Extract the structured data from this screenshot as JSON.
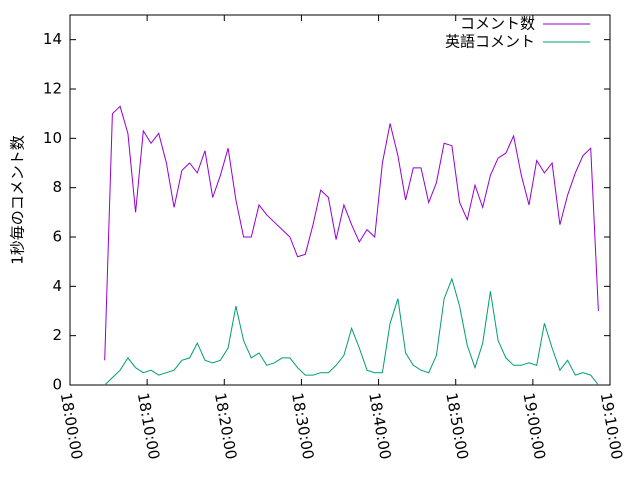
{
  "chart_data": {
    "type": "line",
    "y_label": "1秒毎のコメント数",
    "x": [
      "18:04:30",
      "18:05:30",
      "18:06:30",
      "18:07:30",
      "18:08:30",
      "18:09:30",
      "18:10:30",
      "18:11:30",
      "18:12:30",
      "18:13:30",
      "18:14:30",
      "18:15:30",
      "18:16:30",
      "18:17:30",
      "18:18:30",
      "18:19:30",
      "18:20:30",
      "18:21:30",
      "18:22:30",
      "18:23:30",
      "18:24:30",
      "18:25:30",
      "18:26:30",
      "18:27:30",
      "18:28:30",
      "18:29:30",
      "18:30:30",
      "18:31:30",
      "18:32:30",
      "18:33:30",
      "18:34:30",
      "18:35:30",
      "18:36:30",
      "18:37:30",
      "18:38:30",
      "18:39:30",
      "18:40:30",
      "18:41:30",
      "18:42:30",
      "18:43:30",
      "18:44:30",
      "18:45:30",
      "18:46:30",
      "18:47:30",
      "18:48:30",
      "18:49:30",
      "18:50:30",
      "18:51:30",
      "18:52:30",
      "18:53:30",
      "18:54:30",
      "18:55:30",
      "18:56:30",
      "18:57:30",
      "18:58:30",
      "18:59:30",
      "19:00:30",
      "19:01:30",
      "19:02:30",
      "19:03:30",
      "19:04:30",
      "19:05:30",
      "19:06:30",
      "19:07:30",
      "19:08:30"
    ],
    "series": [
      {
        "name": "コメント数",
        "color": "#9400d3",
        "values": [
          1.0,
          11,
          11.3,
          10.2,
          7,
          10.3,
          9.8,
          10.2,
          9.0,
          7.2,
          8.7,
          9.0,
          8.6,
          9.5,
          7.6,
          8.5,
          9.6,
          7.5,
          6.0,
          6.0,
          7.3,
          6.9,
          6.6,
          6.3,
          6.0,
          5.2,
          5.3,
          6.5,
          7.9,
          7.6,
          5.9,
          7.3,
          6.5,
          5.8,
          6.3,
          6.0,
          9.0,
          10.6,
          9.3,
          7.5,
          8.8,
          8.8,
          7.4,
          8.2,
          9.8,
          9.7,
          7.4,
          6.7,
          8.1,
          7.2,
          8.5,
          9.2,
          9.4,
          10.1,
          8.5,
          7.3,
          9.1,
          8.6,
          9.0,
          6.5,
          7.7,
          8.6,
          9.3,
          9.6,
          3.0
        ]
      },
      {
        "name": "英語コメント",
        "color": "#009e73",
        "values": [
          0,
          0.3,
          0.6,
          1.1,
          0.7,
          0.5,
          0.6,
          0.4,
          0.5,
          0.6,
          1.0,
          1.1,
          1.7,
          1.0,
          0.9,
          1.0,
          1.5,
          3.2,
          1.8,
          1.1,
          1.3,
          0.8,
          0.9,
          1.1,
          1.1,
          0.7,
          0.4,
          0.4,
          0.5,
          0.5,
          0.8,
          1.2,
          2.3,
          1.5,
          0.6,
          0.5,
          0.5,
          2.5,
          3.5,
          1.3,
          0.8,
          0.6,
          0.5,
          1.2,
          3.5,
          4.3,
          3.2,
          1.6,
          0.7,
          1.7,
          3.8,
          1.8,
          1.1,
          0.8,
          0.8,
          0.9,
          0.8,
          2.5,
          1.5,
          0.6,
          1.0,
          0.4,
          0.5,
          0.4,
          0
        ]
      }
    ],
    "xlim": [
      "18:00:00",
      "19:10:00"
    ],
    "xticks": [
      "18:00:00",
      "18:10:00",
      "18:20:00",
      "18:30:00",
      "18:40:00",
      "18:50:00",
      "19:00:00",
      "19:10:00"
    ],
    "ylim": [
      0,
      15
    ],
    "yticks": [
      0,
      2,
      4,
      6,
      8,
      10,
      12,
      14
    ]
  }
}
